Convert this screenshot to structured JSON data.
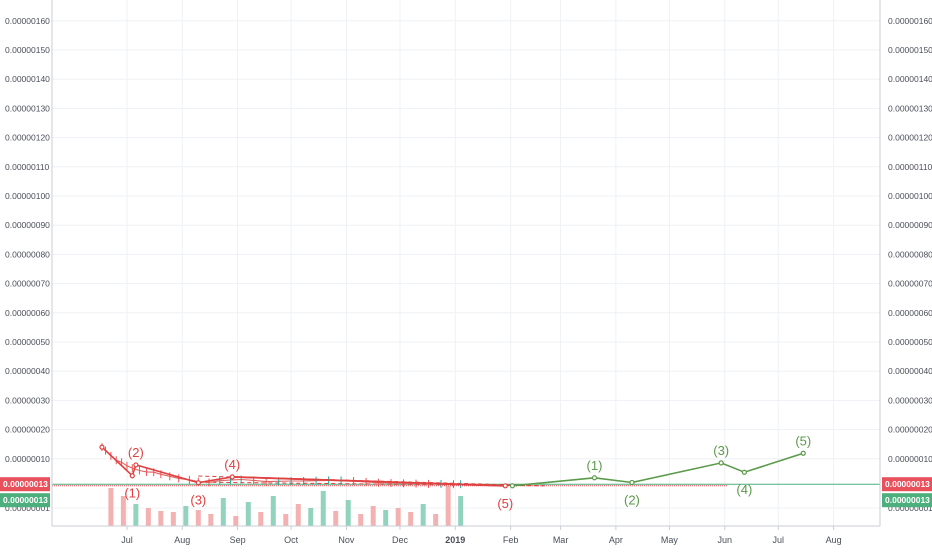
{
  "chart_data": {
    "type": "line",
    "title": "",
    "xlabel": "",
    "ylabel": "",
    "y_axis_ticks": [
      "0.00000001",
      "0.00000010",
      "0.00000020",
      "0.00000030",
      "0.00000040",
      "0.00000050",
      "0.00000060",
      "0.00000070",
      "0.00000080",
      "0.00000090",
      "0.00000100",
      "0.00000110",
      "0.00000120",
      "0.00000130",
      "0.00000140",
      "0.00000150",
      "0.00000160",
      "0.00000170"
    ],
    "y_axis_positions": "both-sides",
    "x_axis_ticks": [
      "Jul",
      "Aug",
      "Sep",
      "Oct",
      "Nov",
      "Dec",
      "2019",
      "Feb",
      "Mar",
      "Apr",
      "May",
      "Jun",
      "Jul",
      "Aug"
    ],
    "ylim": [
      0,
      1.75e-06
    ],
    "grid": true,
    "price_labels": [
      {
        "label": "0.00000013",
        "color": "#e8505b"
      },
      {
        "label": "0.00000013",
        "color": "#4caf7d"
      }
    ],
    "price_history": {
      "name": "",
      "x": [
        "2018-06-17",
        "2018-06-19",
        "2018-06-22",
        "2018-06-25",
        "2018-06-28",
        "2018-07-01",
        "2018-07-04",
        "2018-07-08",
        "2018-07-12",
        "2018-07-16",
        "2018-07-20",
        "2018-07-25",
        "2018-07-30",
        "2018-08-05",
        "2018-08-10",
        "2018-08-16",
        "2018-08-22",
        "2018-08-28",
        "2018-09-03",
        "2018-09-10",
        "2018-09-17",
        "2018-09-24",
        "2018-10-01",
        "2018-10-08",
        "2018-10-15",
        "2018-10-22",
        "2018-10-29",
        "2018-11-05",
        "2018-11-12",
        "2018-11-19",
        "2018-11-26",
        "2018-12-03",
        "2018-12-10",
        "2018-12-17",
        "2018-12-24",
        "2018-12-31",
        "2019-01-04"
      ],
      "values": [
        1.4e-07,
        1.28e-07,
        1.1e-07,
        9.5e-08,
        8.8e-08,
        7.6e-08,
        6.8e-08,
        6e-08,
        5.5e-08,
        5.4e-08,
        4.7e-08,
        4e-08,
        3.3e-08,
        2.8e-08,
        2.2e-08,
        1.9e-08,
        2.5e-08,
        2.7e-08,
        2.9e-08,
        2.6e-08,
        2.2e-08,
        2.3e-08,
        2.4e-08,
        2.4e-08,
        2.5e-08,
        2.6e-08,
        2.6e-08,
        2.4e-08,
        2.1e-08,
        1.8e-08,
        1.7e-08,
        1.6e-08,
        1.5e-08,
        1.4e-08,
        1.4e-08,
        1.3e-08,
        1.3e-08
      ]
    },
    "volume": {
      "x": [
        "2018-06-22",
        "2018-06-29",
        "2018-07-06",
        "2018-07-13",
        "2018-07-20",
        "2018-07-27",
        "2018-08-03",
        "2018-08-10",
        "2018-08-17",
        "2018-08-24",
        "2018-08-31",
        "2018-09-07",
        "2018-09-14",
        "2018-09-21",
        "2018-09-28",
        "2018-10-05",
        "2018-10-12",
        "2018-10-19",
        "2018-10-26",
        "2018-11-02",
        "2018-11-09",
        "2018-11-16",
        "2018-11-23",
        "2018-11-30",
        "2018-12-07",
        "2018-12-14",
        "2018-12-21",
        "2018-12-28",
        "2019-01-04"
      ],
      "values": [
        0.38,
        0.3,
        0.22,
        0.18,
        0.15,
        0.14,
        0.2,
        0.16,
        0.12,
        0.28,
        0.1,
        0.24,
        0.14,
        0.3,
        0.12,
        0.22,
        0.18,
        0.35,
        0.15,
        0.26,
        0.12,
        0.2,
        0.16,
        0.18,
        0.14,
        0.22,
        0.12,
        0.4,
        0.3
      ],
      "up": [
        false,
        false,
        true,
        false,
        false,
        false,
        true,
        false,
        false,
        true,
        false,
        true,
        false,
        true,
        false,
        false,
        true,
        true,
        false,
        true,
        false,
        false,
        true,
        false,
        false,
        true,
        false,
        false,
        true
      ]
    },
    "count_actual": {
      "name": "",
      "x": [
        "2018-06-17",
        "2018-07-04",
        "2018-07-06",
        "2018-08-10",
        "2018-08-29",
        "2019-01-29"
      ],
      "values": [
        1.4e-07,
        4.2e-08,
        7.9e-08,
        1.8e-08,
        3.8e-08,
        7.5e-09
      ],
      "labels": [
        "",
        "(1)",
        "(2)",
        "(3)",
        "(4)",
        "(5)"
      ]
    },
    "count_projection": {
      "name": "",
      "x": [
        "2019-02-02",
        "2019-03-20",
        "2019-04-10",
        "2019-05-30",
        "2019-06-12",
        "2019-07-15"
      ],
      "values": [
        7.5e-09,
        3.5e-08,
        1.9e-08,
        8.6e-08,
        5.4e-08,
        1.19e-07
      ],
      "labels": [
        "",
        "(1)",
        "(2)",
        "(3)",
        "(4)",
        "(5)"
      ]
    },
    "trendlines": [
      {
        "style": "solid",
        "x": [
          "2018-08-29",
          "2019-01-29"
        ],
        "values": [
          3.8e-08,
          7.5e-09
        ]
      },
      {
        "style": "dashed",
        "x": [
          "2018-08-10",
          "2019-02-20"
        ],
        "values": [
          4.1e-08,
          7.5e-09
        ]
      },
      {
        "style": "dashed",
        "x": [
          "2018-08-10",
          "2019-02-20"
        ],
        "values": [
          2e-08,
          7.5e-09
        ]
      }
    ],
    "horizontal_lines": [
      {
        "value": 1.3e-08,
        "color": "#4caf7d"
      },
      {
        "value": 7.5e-09,
        "color": "#e8505b"
      }
    ]
  }
}
